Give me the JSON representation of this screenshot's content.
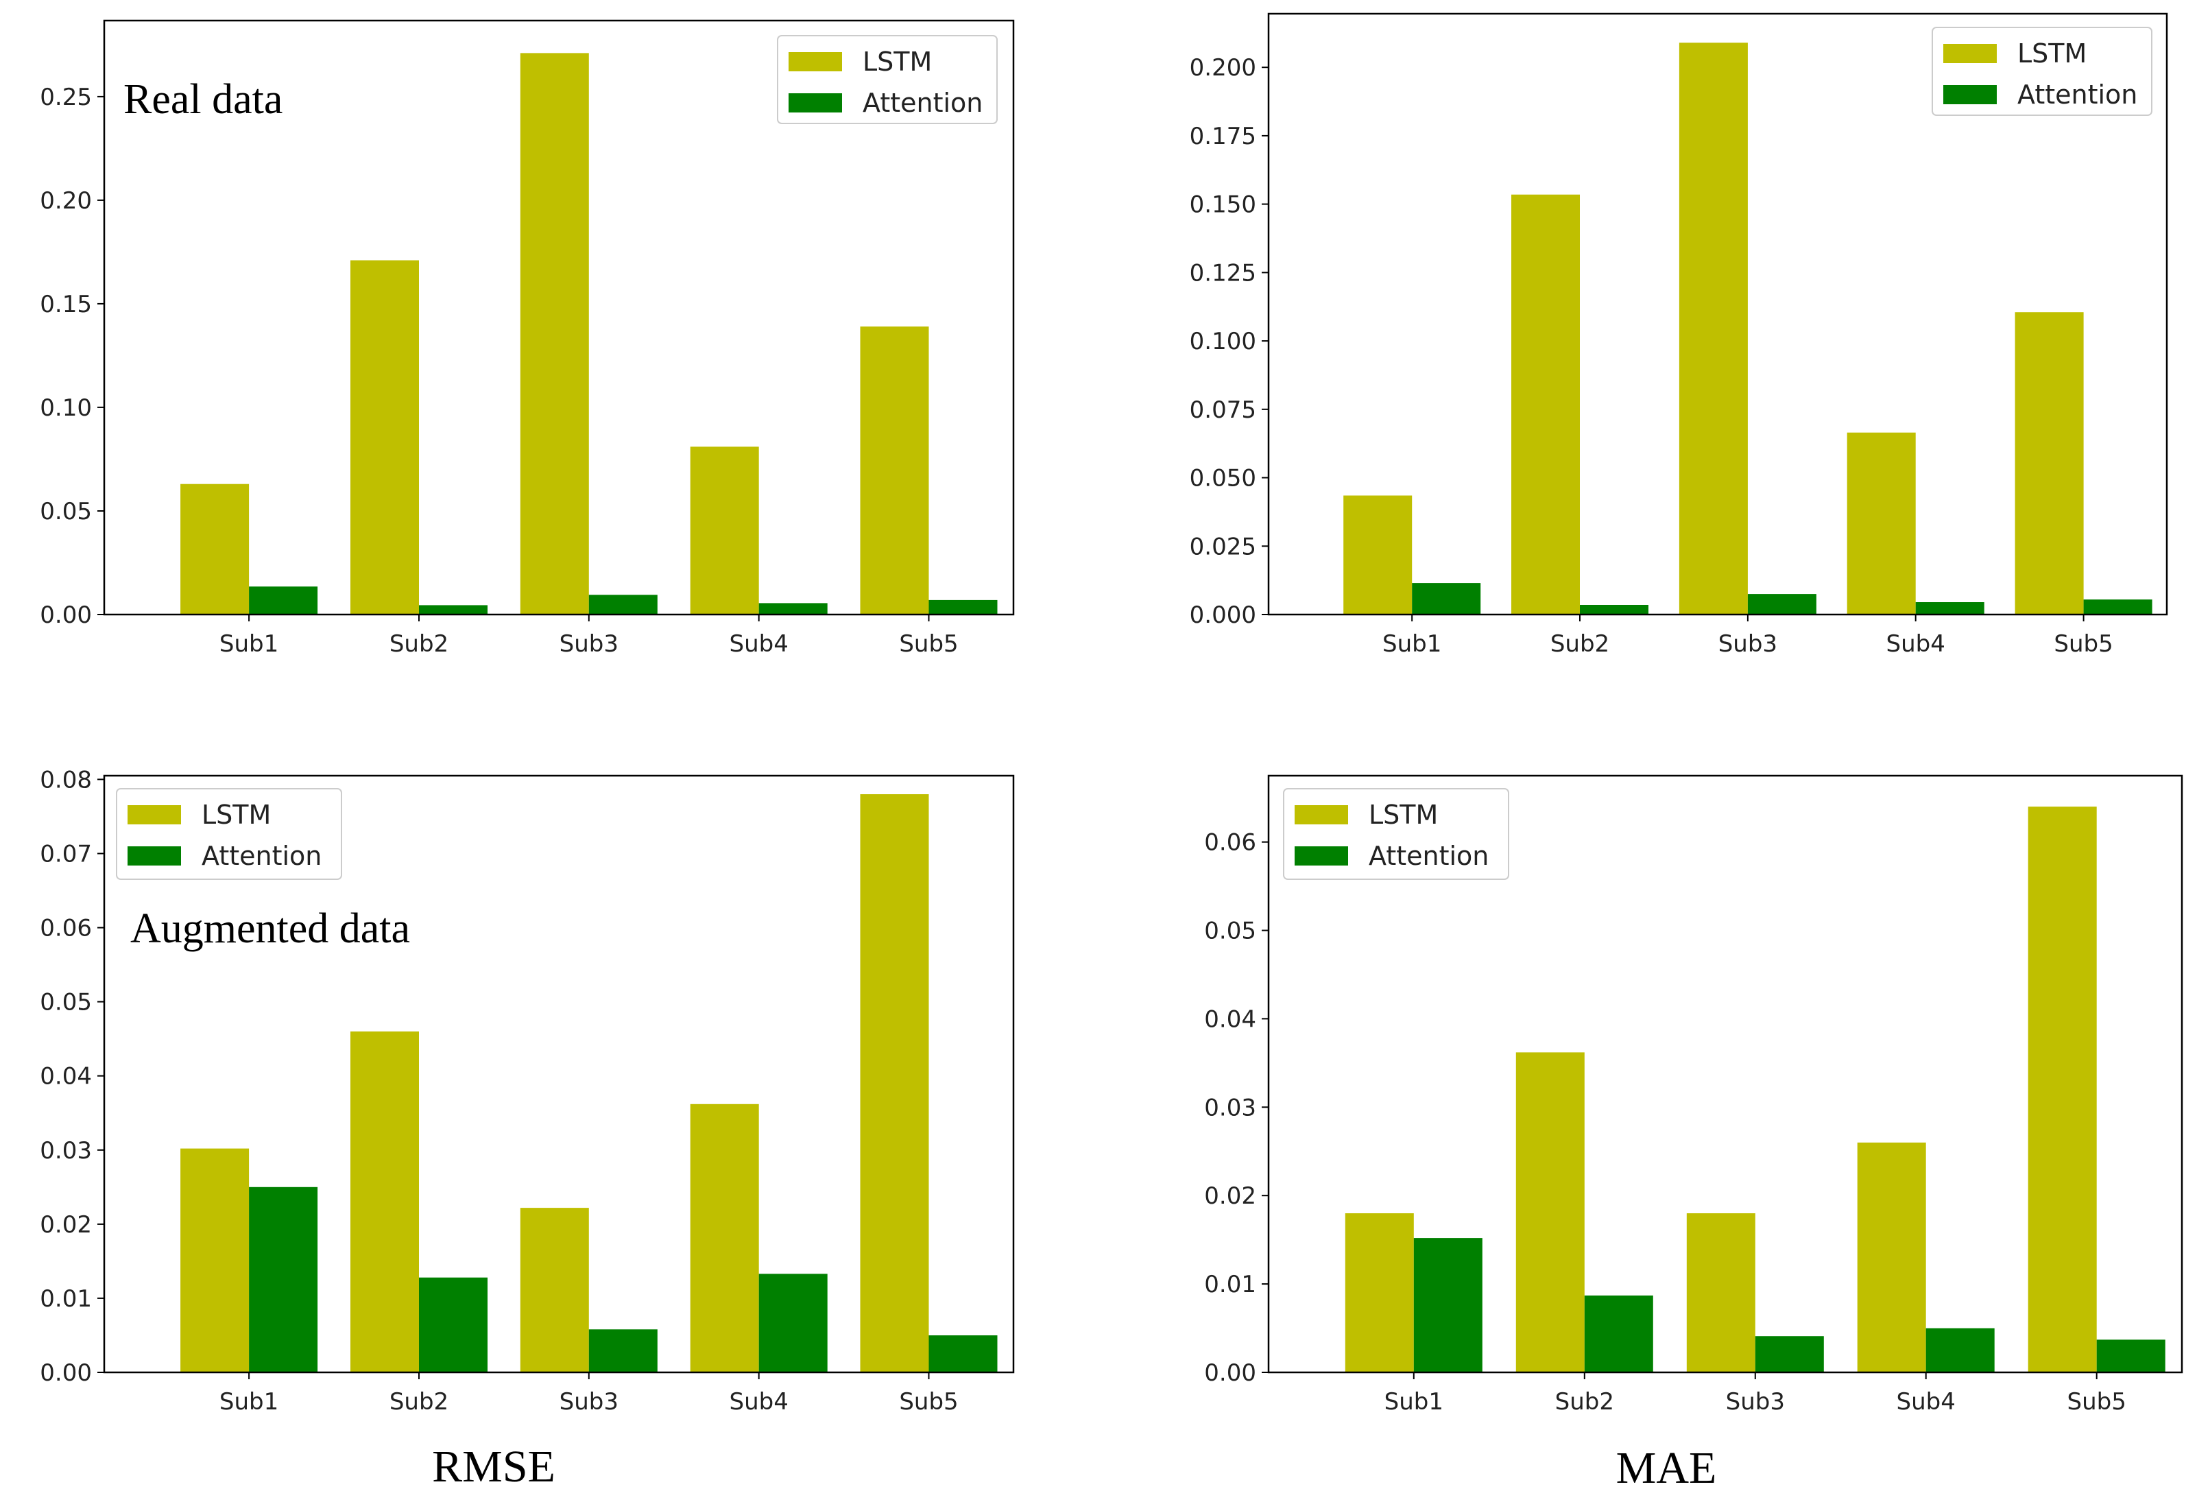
{
  "colors": {
    "lstm": "#bfbf00",
    "attention": "#008000"
  },
  "captions": {
    "left": "RMSE",
    "right": "MAE"
  },
  "chart_data": [
    {
      "type": "bar",
      "id": "rmse-real",
      "annotation": "Real data",
      "categories": [
        "Sub1",
        "Sub2",
        "Sub3",
        "Sub4",
        "Sub5"
      ],
      "series": [
        {
          "name": "LSTM",
          "values": [
            0.063,
            0.171,
            0.271,
            0.081,
            0.139
          ]
        },
        {
          "name": "Attention",
          "values": [
            0.0135,
            0.0045,
            0.0095,
            0.0055,
            0.007
          ]
        }
      ],
      "ylim": [
        0,
        0.2867
      ],
      "yticks": [
        0.0,
        0.05,
        0.1,
        0.15,
        0.2,
        0.25
      ],
      "ytick_labels": [
        "0.00",
        "0.05",
        "0.10",
        "0.15",
        "0.20",
        "0.25"
      ],
      "legend": "top-right",
      "xlabel": "",
      "ylabel": "",
      "title": ""
    },
    {
      "type": "bar",
      "id": "mae-real",
      "annotation": "",
      "categories": [
        "Sub1",
        "Sub2",
        "Sub3",
        "Sub4",
        "Sub5"
      ],
      "series": [
        {
          "name": "LSTM",
          "values": [
            0.0435,
            0.1535,
            0.209,
            0.0665,
            0.1105
          ]
        },
        {
          "name": "Attention",
          "values": [
            0.0115,
            0.0035,
            0.0075,
            0.0045,
            0.0055
          ]
        }
      ],
      "ylim": [
        0,
        0.2196
      ],
      "yticks": [
        0.0,
        0.025,
        0.05,
        0.075,
        0.1,
        0.125,
        0.15,
        0.175,
        0.2
      ],
      "ytick_labels": [
        "0.000",
        "0.025",
        "0.050",
        "0.075",
        "0.100",
        "0.125",
        "0.150",
        "0.175",
        "0.200"
      ],
      "legend": "top-right",
      "xlabel": "",
      "ylabel": "",
      "title": ""
    },
    {
      "type": "bar",
      "id": "rmse-augmented",
      "annotation": "Augmented data",
      "categories": [
        "Sub1",
        "Sub2",
        "Sub3",
        "Sub4",
        "Sub5"
      ],
      "series": [
        {
          "name": "LSTM",
          "values": [
            0.0302,
            0.046,
            0.0222,
            0.0362,
            0.078
          ]
        },
        {
          "name": "Attention",
          "values": [
            0.025,
            0.0128,
            0.0058,
            0.0133,
            0.005
          ]
        }
      ],
      "ylim": [
        0,
        0.0805
      ],
      "yticks": [
        0.0,
        0.01,
        0.02,
        0.03,
        0.04,
        0.05,
        0.06,
        0.07,
        0.08
      ],
      "ytick_labels": [
        "0.00",
        "0.01",
        "0.02",
        "0.03",
        "0.04",
        "0.05",
        "0.06",
        "0.07",
        "0.08"
      ],
      "legend": "top-left",
      "xlabel": "",
      "ylabel": "",
      "title": ""
    },
    {
      "type": "bar",
      "id": "mae-augmented",
      "annotation": "",
      "categories": [
        "Sub1",
        "Sub2",
        "Sub3",
        "Sub4",
        "Sub5"
      ],
      "series": [
        {
          "name": "LSTM",
          "values": [
            0.018,
            0.0362,
            0.018,
            0.026,
            0.064
          ]
        },
        {
          "name": "Attention",
          "values": [
            0.0152,
            0.0087,
            0.0041,
            0.005,
            0.0037
          ]
        }
      ],
      "ylim": [
        0,
        0.0675
      ],
      "yticks": [
        0.0,
        0.01,
        0.02,
        0.03,
        0.04,
        0.05,
        0.06
      ],
      "ytick_labels": [
        "0.00",
        "0.01",
        "0.02",
        "0.03",
        "0.04",
        "0.05",
        "0.06"
      ],
      "legend": "top-left",
      "xlabel": "",
      "ylabel": "",
      "title": ""
    }
  ]
}
